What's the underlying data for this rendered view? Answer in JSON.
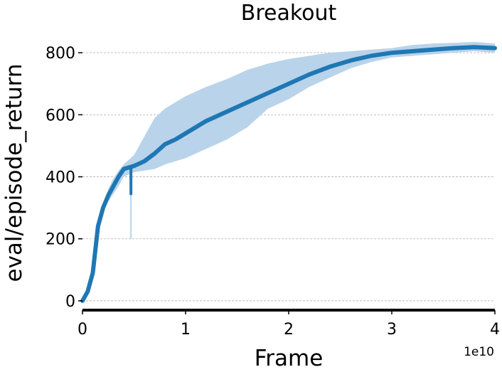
{
  "chart_data": {
    "type": "line",
    "title": "Breakout",
    "xlabel": "Frame",
    "ylabel": "eval/episode_return",
    "x_offset_text": "1e10",
    "x_scale": 10000000000,
    "xlim": [
      0,
      4
    ],
    "ylim": [
      -30,
      860
    ],
    "x_ticks": [
      0,
      1,
      2,
      3,
      4
    ],
    "x_tick_labels": [
      "0",
      "1",
      "2",
      "3",
      "4"
    ],
    "y_ticks": [
      0,
      200,
      400,
      600,
      800
    ],
    "y_tick_labels": [
      "0",
      "200",
      "400",
      "600",
      "800"
    ],
    "grid": "horizontal-dashed",
    "legend": "none",
    "colors": {
      "line": "#1f77b4",
      "band": "#b9d3ea",
      "grid": "#b0b0b0",
      "axis": "#000000"
    },
    "series": [
      {
        "x": [
          0,
          0.05,
          0.1,
          0.15,
          0.2,
          0.25,
          0.3,
          0.35,
          0.4,
          0.5,
          0.6,
          0.7,
          0.8,
          0.9,
          1.0,
          1.2,
          1.4,
          1.6,
          1.8,
          2.0,
          2.2,
          2.4,
          2.6,
          2.8,
          3.0,
          3.2,
          3.4,
          3.6,
          3.8,
          4.0
        ],
        "y": [
          0,
          30,
          90,
          240,
          300,
          340,
          370,
          400,
          425,
          435,
          450,
          475,
          505,
          520,
          540,
          580,
          610,
          640,
          670,
          700,
          730,
          755,
          775,
          790,
          800,
          805,
          810,
          815,
          818,
          815
        ],
        "upper": [
          0,
          35,
          100,
          250,
          315,
          360,
          395,
          420,
          440,
          470,
          530,
          590,
          620,
          640,
          660,
          690,
          715,
          745,
          765,
          780,
          790,
          800,
          805,
          810,
          815,
          825,
          830,
          832,
          835,
          830
        ],
        "lower": [
          0,
          25,
          80,
          230,
          285,
          320,
          345,
          370,
          400,
          415,
          420,
          425,
          440,
          450,
          460,
          490,
          520,
          560,
          620,
          650,
          690,
          720,
          750,
          770,
          785,
          790,
          795,
          800,
          805,
          800
        ],
        "dip": {
          "x": 0.47,
          "low": 345,
          "band_low": 200
        }
      }
    ]
  }
}
